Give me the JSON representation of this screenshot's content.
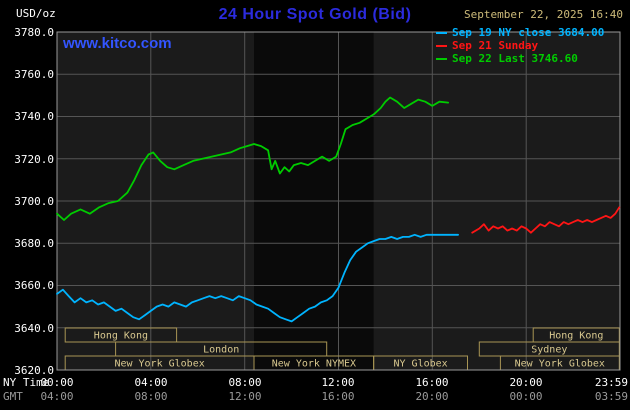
{
  "header": {
    "units_label": "USD/oz",
    "title": "24 Hour Spot Gold (Bid)",
    "title_color": "#2b2bdd",
    "datetime": "September 22, 2025 16:40",
    "date_color": "#cdbb7a",
    "watermark": "www.kitco.com",
    "watermark_color": "#3355ff",
    "legend": [
      {
        "label": "Sep 19 NY close 3684.00",
        "color": "#00b4ff"
      },
      {
        "label": "Sep 21 Sunday",
        "color": "#ff1515"
      },
      {
        "label": "Sep 22 Last 3746.60",
        "color": "#00cc00"
      }
    ]
  },
  "axes": {
    "y_ticks": [
      "3780.0",
      "3760.0",
      "3740.0",
      "3720.0",
      "3700.0",
      "3680.0",
      "3660.0",
      "3640.0",
      "3620.0"
    ],
    "ny_time_label": "NY Time",
    "gmt_label": "GMT",
    "ny_ticks": [
      "00:00",
      "04:00",
      "08:00",
      "12:00",
      "16:00",
      "20:00",
      "23:59"
    ],
    "gmt_ticks": [
      "04:00",
      "08:00",
      "12:00",
      "16:00",
      "20:00",
      "00:00",
      "03:59"
    ]
  },
  "chart_data": {
    "type": "line",
    "title": "24 Hour Spot Gold (Bid)",
    "xlabel": "NY Time (hours)",
    "ylabel": "USD/oz",
    "xlim": [
      0,
      24
    ],
    "ylim": [
      3620,
      3780
    ],
    "y_gridlines": [
      3640,
      3660,
      3680,
      3700,
      3720,
      3740,
      3760
    ],
    "x_gridlines_hours": [
      4,
      8,
      12,
      16,
      20
    ],
    "nymex_shade_hours": [
      8.4,
      13.5
    ],
    "colors": {
      "plot_bg": "#1b1b1b",
      "shade": "#0a0a0a",
      "grid": "#555555",
      "frame": "#999999",
      "session_border": "#a89554",
      "session_text": "#d8c88f"
    },
    "series": [
      {
        "name": "Sep 19 NY close",
        "color": "#00b4ff",
        "last_value": 3684.0,
        "points": [
          [
            0,
            3656
          ],
          [
            0.25,
            3658
          ],
          [
            0.5,
            3655
          ],
          [
            0.75,
            3652
          ],
          [
            1,
            3654
          ],
          [
            1.25,
            3652
          ],
          [
            1.5,
            3653
          ],
          [
            1.75,
            3651
          ],
          [
            2,
            3652
          ],
          [
            2.25,
            3650
          ],
          [
            2.5,
            3648
          ],
          [
            2.75,
            3649
          ],
          [
            3,
            3647
          ],
          [
            3.25,
            3645
          ],
          [
            3.5,
            3644
          ],
          [
            3.75,
            3646
          ],
          [
            4,
            3648
          ],
          [
            4.25,
            3650
          ],
          [
            4.5,
            3651
          ],
          [
            4.75,
            3650
          ],
          [
            5,
            3652
          ],
          [
            5.25,
            3651
          ],
          [
            5.5,
            3650
          ],
          [
            5.75,
            3652
          ],
          [
            6,
            3653
          ],
          [
            6.25,
            3654
          ],
          [
            6.5,
            3655
          ],
          [
            6.75,
            3654
          ],
          [
            7,
            3655
          ],
          [
            7.25,
            3654
          ],
          [
            7.5,
            3653
          ],
          [
            7.75,
            3655
          ],
          [
            8,
            3654
          ],
          [
            8.25,
            3653
          ],
          [
            8.5,
            3651
          ],
          [
            8.75,
            3650
          ],
          [
            9,
            3649
          ],
          [
            9.25,
            3647
          ],
          [
            9.5,
            3645
          ],
          [
            9.75,
            3644
          ],
          [
            10,
            3643
          ],
          [
            10.25,
            3645
          ],
          [
            10.5,
            3647
          ],
          [
            10.75,
            3649
          ],
          [
            11,
            3650
          ],
          [
            11.25,
            3652
          ],
          [
            11.5,
            3653
          ],
          [
            11.75,
            3655
          ],
          [
            12,
            3659
          ],
          [
            12.25,
            3666
          ],
          [
            12.5,
            3672
          ],
          [
            12.75,
            3676
          ],
          [
            13,
            3678
          ],
          [
            13.25,
            3680
          ],
          [
            13.5,
            3681
          ],
          [
            13.75,
            3682
          ],
          [
            14,
            3682
          ],
          [
            14.25,
            3683
          ],
          [
            14.5,
            3682
          ],
          [
            14.75,
            3683
          ],
          [
            15,
            3683
          ],
          [
            15.25,
            3684
          ],
          [
            15.5,
            3683
          ],
          [
            15.75,
            3684
          ],
          [
            16,
            3684
          ],
          [
            16.5,
            3684
          ],
          [
            17.1,
            3684
          ]
        ]
      },
      {
        "name": "Sep 21 Sunday",
        "color": "#ff1515",
        "points": [
          [
            17.7,
            3685
          ],
          [
            18,
            3687
          ],
          [
            18.2,
            3689
          ],
          [
            18.4,
            3686
          ],
          [
            18.6,
            3688
          ],
          [
            18.8,
            3687
          ],
          [
            19,
            3688
          ],
          [
            19.2,
            3686
          ],
          [
            19.4,
            3687
          ],
          [
            19.6,
            3686
          ],
          [
            19.8,
            3688
          ],
          [
            20,
            3687
          ],
          [
            20.2,
            3685
          ],
          [
            20.4,
            3687
          ],
          [
            20.6,
            3689
          ],
          [
            20.8,
            3688
          ],
          [
            21,
            3690
          ],
          [
            21.2,
            3689
          ],
          [
            21.4,
            3688
          ],
          [
            21.6,
            3690
          ],
          [
            21.8,
            3689
          ],
          [
            22,
            3690
          ],
          [
            22.2,
            3691
          ],
          [
            22.4,
            3690
          ],
          [
            22.6,
            3691
          ],
          [
            22.8,
            3690
          ],
          [
            23,
            3691
          ],
          [
            23.2,
            3692
          ],
          [
            23.4,
            3693
          ],
          [
            23.6,
            3692
          ],
          [
            23.8,
            3694
          ],
          [
            23.97,
            3697
          ]
        ]
      },
      {
        "name": "Sep 22 Last",
        "color": "#00cc00",
        "last_value": 3746.6,
        "points": [
          [
            0,
            3694
          ],
          [
            0.3,
            3691
          ],
          [
            0.6,
            3694
          ],
          [
            1,
            3696
          ],
          [
            1.4,
            3694
          ],
          [
            1.8,
            3697
          ],
          [
            2.2,
            3699
          ],
          [
            2.6,
            3700
          ],
          [
            3,
            3704
          ],
          [
            3.3,
            3710
          ],
          [
            3.6,
            3717
          ],
          [
            3.9,
            3722
          ],
          [
            4.1,
            3723
          ],
          [
            4.4,
            3719
          ],
          [
            4.7,
            3716
          ],
          [
            5,
            3715
          ],
          [
            5.4,
            3717
          ],
          [
            5.8,
            3719
          ],
          [
            6.2,
            3720
          ],
          [
            6.6,
            3721
          ],
          [
            7,
            3722
          ],
          [
            7.4,
            3723
          ],
          [
            7.8,
            3725
          ],
          [
            8.1,
            3726
          ],
          [
            8.4,
            3727
          ],
          [
            8.7,
            3726
          ],
          [
            9,
            3724
          ],
          [
            9.15,
            3715
          ],
          [
            9.3,
            3719
          ],
          [
            9.5,
            3713
          ],
          [
            9.7,
            3716
          ],
          [
            9.9,
            3714
          ],
          [
            10.1,
            3717
          ],
          [
            10.4,
            3718
          ],
          [
            10.7,
            3717
          ],
          [
            11,
            3719
          ],
          [
            11.3,
            3721
          ],
          [
            11.6,
            3719
          ],
          [
            11.9,
            3721
          ],
          [
            12.1,
            3727
          ],
          [
            12.3,
            3734
          ],
          [
            12.6,
            3736
          ],
          [
            12.9,
            3737
          ],
          [
            13.2,
            3739
          ],
          [
            13.5,
            3741
          ],
          [
            13.8,
            3744
          ],
          [
            14,
            3747
          ],
          [
            14.2,
            3749
          ],
          [
            14.5,
            3747
          ],
          [
            14.8,
            3744
          ],
          [
            15.1,
            3746
          ],
          [
            15.4,
            3748
          ],
          [
            15.7,
            3747
          ],
          [
            16,
            3745
          ],
          [
            16.3,
            3747
          ],
          [
            16.67,
            3746.6
          ]
        ]
      }
    ],
    "sessions": [
      {
        "row": 0,
        "label": "Hong Kong",
        "start": 0.35,
        "end": 5.1
      },
      {
        "row": 0,
        "label": "Hong Kong",
        "start": 20.3,
        "end": 23.97
      },
      {
        "row": 1,
        "label": "London",
        "start": 2.5,
        "end": 11.5
      },
      {
        "row": 1,
        "label": "Sydney",
        "start": 18.0,
        "end": 23.97
      },
      {
        "row": 2,
        "label": "New York Globex",
        "start": 0.35,
        "end": 8.4
      },
      {
        "row": 2,
        "label": "New York NYMEX",
        "start": 8.4,
        "end": 13.5
      },
      {
        "row": 2,
        "label": "NY Globex",
        "start": 13.5,
        "end": 17.5
      },
      {
        "row": 2,
        "label": "New York Globex",
        "start": 18.9,
        "end": 23.97
      }
    ]
  }
}
